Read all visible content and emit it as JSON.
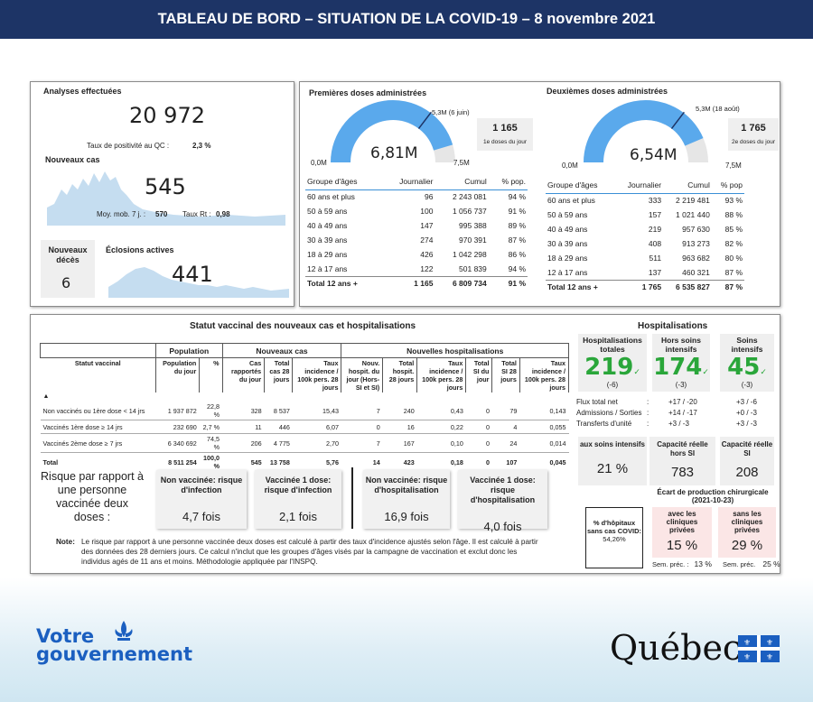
{
  "header": {
    "title": "TABLEAU DE BORD – SITUATION DE LA COVID-19 – 8 novembre 2021"
  },
  "analyses": {
    "title": "Analyses effectuées",
    "value": "20 972",
    "positivity_label": "Taux de positivité au QC :",
    "positivity_value": "2,3 %"
  },
  "nouveaux_cas": {
    "title": "Nouveaux cas",
    "value": "545",
    "moy_label": "Moy. mob. 7 j. :",
    "moy_value": "570",
    "rt_label": "Taux Rt :",
    "rt_value": "0,98"
  },
  "deces": {
    "title": "Nouveaux décès",
    "value": "6"
  },
  "eclosions": {
    "title": "Éclosions actives",
    "value": "441"
  },
  "first_doses": {
    "title": "Premières doses administrées",
    "gauge_value": "6,81M",
    "min": "0,0M",
    "max": "7,5M",
    "marker": "5,3M (6 juin)",
    "fill_fraction": 0.908,
    "daily_value": "1 165",
    "daily_label": "1e doses du jour",
    "headers": [
      "Groupe d'âges",
      "Journalier",
      "Cumul",
      "% pop."
    ],
    "rows": [
      [
        "60 ans et plus",
        "96",
        "2 243 081",
        "94 %"
      ],
      [
        "50 à 59 ans",
        "100",
        "1 056 737",
        "91 %"
      ],
      [
        "40 à 49 ans",
        "147",
        "995 388",
        "89 %"
      ],
      [
        "30 à 39 ans",
        "274",
        "970 391",
        "87 %"
      ],
      [
        "18 à 29 ans",
        "426",
        "1 042 298",
        "86 %"
      ],
      [
        "12 à 17 ans",
        "122",
        "501 839",
        "94 %"
      ]
    ],
    "total": [
      "Total 12 ans +",
      "1 165",
      "6 809 734",
      "91 %"
    ]
  },
  "second_doses": {
    "title": "Deuxièmes doses administrées",
    "gauge_value": "6,54M",
    "min": "0,0M",
    "max": "7,5M",
    "marker": "5,3M (18 août)",
    "fill_fraction": 0.872,
    "daily_value": "1 765",
    "daily_label": "2e doses du jour",
    "headers": [
      "Groupe d'âges",
      "Journalier",
      "Cumul",
      "% pop"
    ],
    "rows": [
      [
        "60 ans et plus",
        "333",
        "2 219 481",
        "93 %"
      ],
      [
        "50 à 59 ans",
        "157",
        "1 021 440",
        "88 %"
      ],
      [
        "40 à 49 ans",
        "219",
        "957 630",
        "85 %"
      ],
      [
        "30 à 39 ans",
        "408",
        "913 273",
        "82 %"
      ],
      [
        "18 à 29 ans",
        "511",
        "963 682",
        "80 %"
      ],
      [
        "12 à 17 ans",
        "137",
        "460 321",
        "87 %"
      ]
    ],
    "total": [
      "Total 12 ans +",
      "1 765",
      "6 535 827",
      "87 %"
    ]
  },
  "statut": {
    "title": "Statut vaccinal des nouveaux cas et hospitalisations",
    "group_headers": [
      "Population",
      "Nouveaux cas",
      "Nouvelles hospitalisations"
    ],
    "col_headers": [
      "Statut vaccinal",
      "Population du jour",
      "%",
      "Cas rapportés du jour",
      "Total cas 28 jours",
      "Taux incidence / 100k pers. 28 jours",
      "Nouv. hospit. du jour (Hors-SI et SI)",
      "Total hospit. 28 jours",
      "Taux incidence / 100k pers. 28 jours",
      "Total SI du jour",
      "Total SI 28 jours",
      "Taux incidence / 100k pers. 28 jours"
    ],
    "sort_icon": "▲",
    "rows": [
      [
        "Non vaccinés ou 1ère dose < 14 jrs",
        "1 937 872",
        "22,8 %",
        "328",
        "8 537",
        "15,43",
        "7",
        "240",
        "0,43",
        "0",
        "79",
        "0,143"
      ],
      [
        "Vaccinés 1ère dose ≥ 14 jrs",
        "232 690",
        "2,7 %",
        "11",
        "446",
        "6,07",
        "0",
        "16",
        "0,22",
        "0",
        "4",
        "0,055"
      ],
      [
        "Vaccinés 2ème dose ≥ 7 jrs",
        "6 340 692",
        "74,5 %",
        "206",
        "4 775",
        "2,70",
        "7",
        "167",
        "0,10",
        "0",
        "24",
        "0,014"
      ]
    ],
    "total": [
      "Total",
      "8 511 254",
      "100,0 %",
      "545",
      "13 758",
      "5,76",
      "14",
      "423",
      "0,18",
      "0",
      "107",
      "0,045"
    ]
  },
  "risque": {
    "label": "Risque par rapport à une personne vaccinée deux doses :",
    "boxes": [
      {
        "title": "Non vaccinée: risque d'infection",
        "value": "4,7 fois"
      },
      {
        "title": "Vaccinée 1 dose: risque d'infection",
        "value": "2,1 fois"
      },
      {
        "title": "Non vaccinée: risque d'hospitalisation",
        "value": "16,9 fois"
      },
      {
        "title": "Vaccinée 1 dose: risque d'hospitalisation",
        "value": "4,0 fois"
      }
    ]
  },
  "note": {
    "label": "Note:",
    "line1": "Le risque par rapport à une personne vaccinée deux doses est calculé à partir des taux d'incidence ajustés selon l'âge. Il est calculé à partir",
    "line2": "des données des 28 derniers jours. Ce calcul n'inclut que les groupes d'âges visés par la campagne de vaccination et exclut donc les",
    "line3": "individus agés de 11 ans et moins. Méthodologie appliquée par l'INSPQ."
  },
  "hospitalisations": {
    "title": "Hospitalisations",
    "kpis": [
      {
        "label": "Hospitalisations totales",
        "value": "219",
        "delta": "(-6)"
      },
      {
        "label": "Hors soins intensifs",
        "value": "174",
        "delta": "(-3)"
      },
      {
        "label": "Soins intensifs",
        "value": "45",
        "delta": "(-3)"
      }
    ],
    "check": "✓",
    "flux": [
      {
        "label": "Flux total net",
        "sep": ":",
        "a": "+17 / -20",
        "b": "+3 / -6"
      },
      {
        "label": "Admissions / Sorties",
        "sep": ":",
        "a": "+14 / -17",
        "b": "+0 / -3"
      },
      {
        "label": "Transferts d'unité",
        "sep": ":",
        "a": "+3 / -3",
        "b": "+3 / -3"
      }
    ],
    "cap": [
      {
        "label": "aux soins intensifs",
        "value": "21 %"
      },
      {
        "label": "Capacité réelle hors SI",
        "value": "783"
      },
      {
        "label": "Capacité réelle SI",
        "value": "208"
      }
    ],
    "ecart_title": "Écart de production chirurgicale (2021-10-23)",
    "sans_cas_label": "% d'hôpitaux sans cas COVID:",
    "sans_cas_value": "54,26%",
    "avec": {
      "label": "avec les cliniques privées",
      "value": "15 %",
      "prev": "Sem. préc. :",
      "prev_value": "13 %"
    },
    "sans": {
      "label": "sans les cliniques privées",
      "value": "29 %",
      "prev": "Sem. préc.",
      "prev_value": "25 %"
    }
  },
  "footer": {
    "logo_left_line1": "Votre",
    "logo_left_line2": "gouvernement",
    "logo_right": "Québec"
  },
  "colors": {
    "navy": "#1d3466",
    "gauge": "#5aa9ec",
    "green": "#2aa63a",
    "brand_blue": "#1b5fc0"
  }
}
